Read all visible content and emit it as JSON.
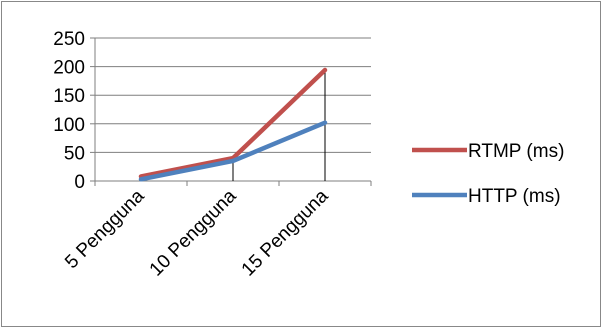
{
  "chart_data": {
    "type": "line",
    "title": "",
    "xlabel": "",
    "ylabel": "",
    "categories": [
      "5 Pengguna",
      "10 Pengguna",
      "15 Pengguna"
    ],
    "ylim": [
      0,
      250
    ],
    "yticks": [
      0,
      50,
      100,
      150,
      200,
      250
    ],
    "grid": true,
    "legend_position": "right",
    "drop_lines": true,
    "series": [
      {
        "name": "RTMP (ms)",
        "values": [
          8,
          40,
          194
        ],
        "color": "#c0504d"
      },
      {
        "name": "HTTP (ms)",
        "values": [
          3,
          35,
          102
        ],
        "color": "#4f81bd"
      }
    ]
  }
}
